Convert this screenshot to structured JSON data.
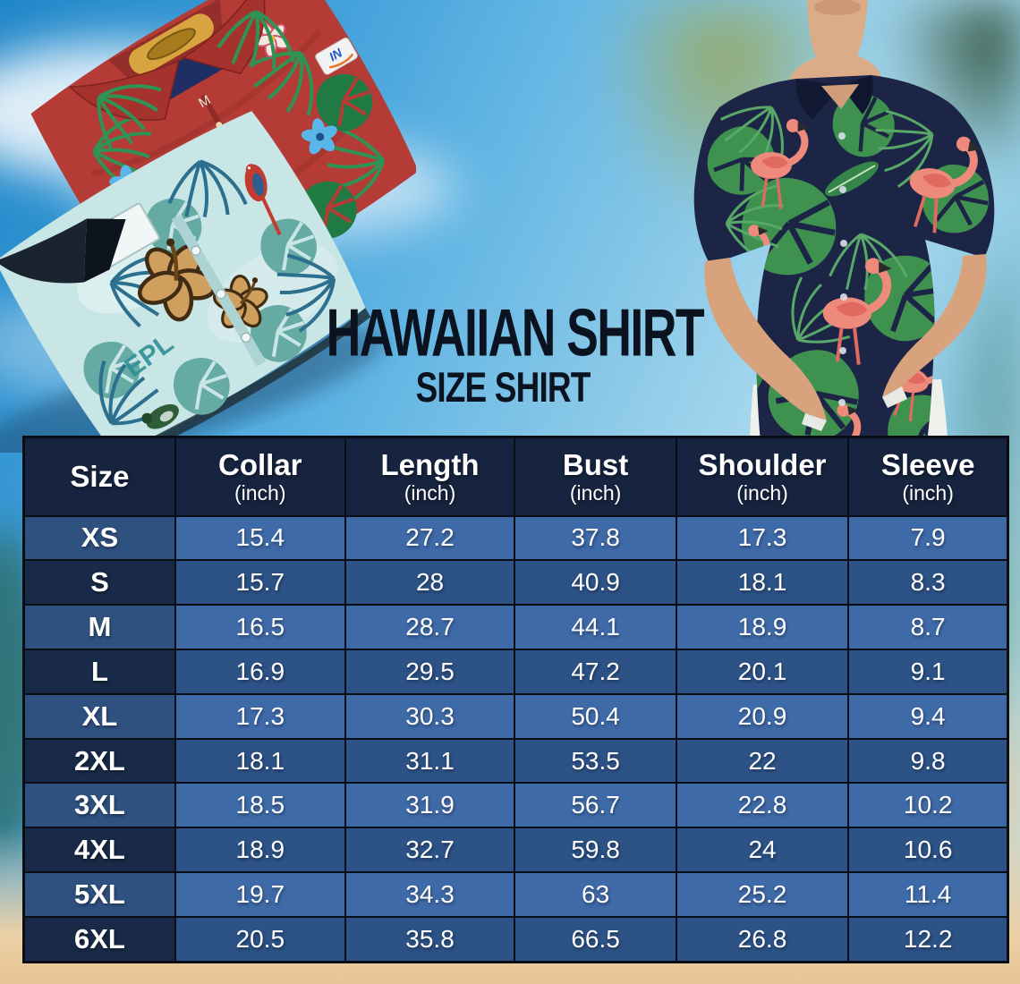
{
  "page": {
    "title_line1": "HAWAIIAN SHIRT",
    "title_line2": "SIZE SHIRT"
  },
  "photos": {
    "red_shirt": {
      "tag_size": "M",
      "brand_text": "IN"
    },
    "teal_shirt": {
      "print_text": "EPL"
    }
  },
  "table": {
    "columns": [
      {
        "label": "Size",
        "unit": ""
      },
      {
        "label": "Collar",
        "unit": "(inch)"
      },
      {
        "label": "Length",
        "unit": "(inch)"
      },
      {
        "label": "Bust",
        "unit": "(inch)"
      },
      {
        "label": "Shoulder",
        "unit": "(inch)"
      },
      {
        "label": "Sleeve",
        "unit": "(inch)"
      }
    ],
    "rows": [
      {
        "size": "XS",
        "values": [
          "15.4",
          "27.2",
          "37.8",
          "17.3",
          "7.9"
        ]
      },
      {
        "size": "S",
        "values": [
          "15.7",
          "28",
          "40.9",
          "18.1",
          "8.3"
        ]
      },
      {
        "size": "M",
        "values": [
          "16.5",
          "28.7",
          "44.1",
          "18.9",
          "8.7"
        ]
      },
      {
        "size": "L",
        "values": [
          "16.9",
          "29.5",
          "47.2",
          "20.1",
          "9.1"
        ]
      },
      {
        "size": "XL",
        "values": [
          "17.3",
          "30.3",
          "50.4",
          "20.9",
          "9.4"
        ]
      },
      {
        "size": "2XL",
        "values": [
          "18.1",
          "31.1",
          "53.5",
          "22",
          "9.8"
        ]
      },
      {
        "size": "3XL",
        "values": [
          "18.5",
          "31.9",
          "56.7",
          "22.8",
          "10.2"
        ]
      },
      {
        "size": "4XL",
        "values": [
          "18.9",
          "32.7",
          "59.8",
          "24",
          "10.6"
        ]
      },
      {
        "size": "5XL",
        "values": [
          "19.7",
          "34.3",
          "63",
          "25.2",
          "11.4"
        ]
      },
      {
        "size": "6XL",
        "values": [
          "20.5",
          "35.8",
          "66.5",
          "26.8",
          "12.2"
        ]
      }
    ]
  },
  "chart_data": {
    "type": "table",
    "title": "Hawaiian Shirt Size Shirt",
    "columns": [
      "Size",
      "Collar (inch)",
      "Length (inch)",
      "Bust (inch)",
      "Shoulder (inch)",
      "Sleeve (inch)"
    ],
    "rows": [
      [
        "XS",
        15.4,
        27.2,
        37.8,
        17.3,
        7.9
      ],
      [
        "S",
        15.7,
        28,
        40.9,
        18.1,
        8.3
      ],
      [
        "M",
        16.5,
        28.7,
        44.1,
        18.9,
        8.7
      ],
      [
        "L",
        16.9,
        29.5,
        47.2,
        20.1,
        9.1
      ],
      [
        "XL",
        17.3,
        30.3,
        50.4,
        20.9,
        9.4
      ],
      [
        "2XL",
        18.1,
        31.1,
        53.5,
        22,
        9.8
      ],
      [
        "3XL",
        18.5,
        31.9,
        56.7,
        22.8,
        10.2
      ],
      [
        "4XL",
        18.9,
        32.7,
        59.8,
        24,
        10.6
      ],
      [
        "5XL",
        19.7,
        34.3,
        63,
        25.2,
        11.4
      ],
      [
        "6XL",
        20.5,
        35.8,
        66.5,
        26.8,
        12.2
      ]
    ]
  },
  "colors": {
    "table_header_bg": "#16243f",
    "table_row_light": "#3f6aa8",
    "table_row_dark": "#2c5286",
    "size_col_light": "#2f5180",
    "size_col_dark": "#182a47",
    "table_border": "#0a0d14",
    "table_text": "#ffffff",
    "title_text": "#0c1320",
    "sky_blue": "#4aa6de",
    "sand": "#ecd0a6",
    "model_shirt_navy": "#1d2547",
    "flamingo_pink": "#ee8a7b",
    "leaf_green": "#3f9150",
    "red_shirt": "#b43b36",
    "teal_shirt": "#c9e6e7"
  }
}
